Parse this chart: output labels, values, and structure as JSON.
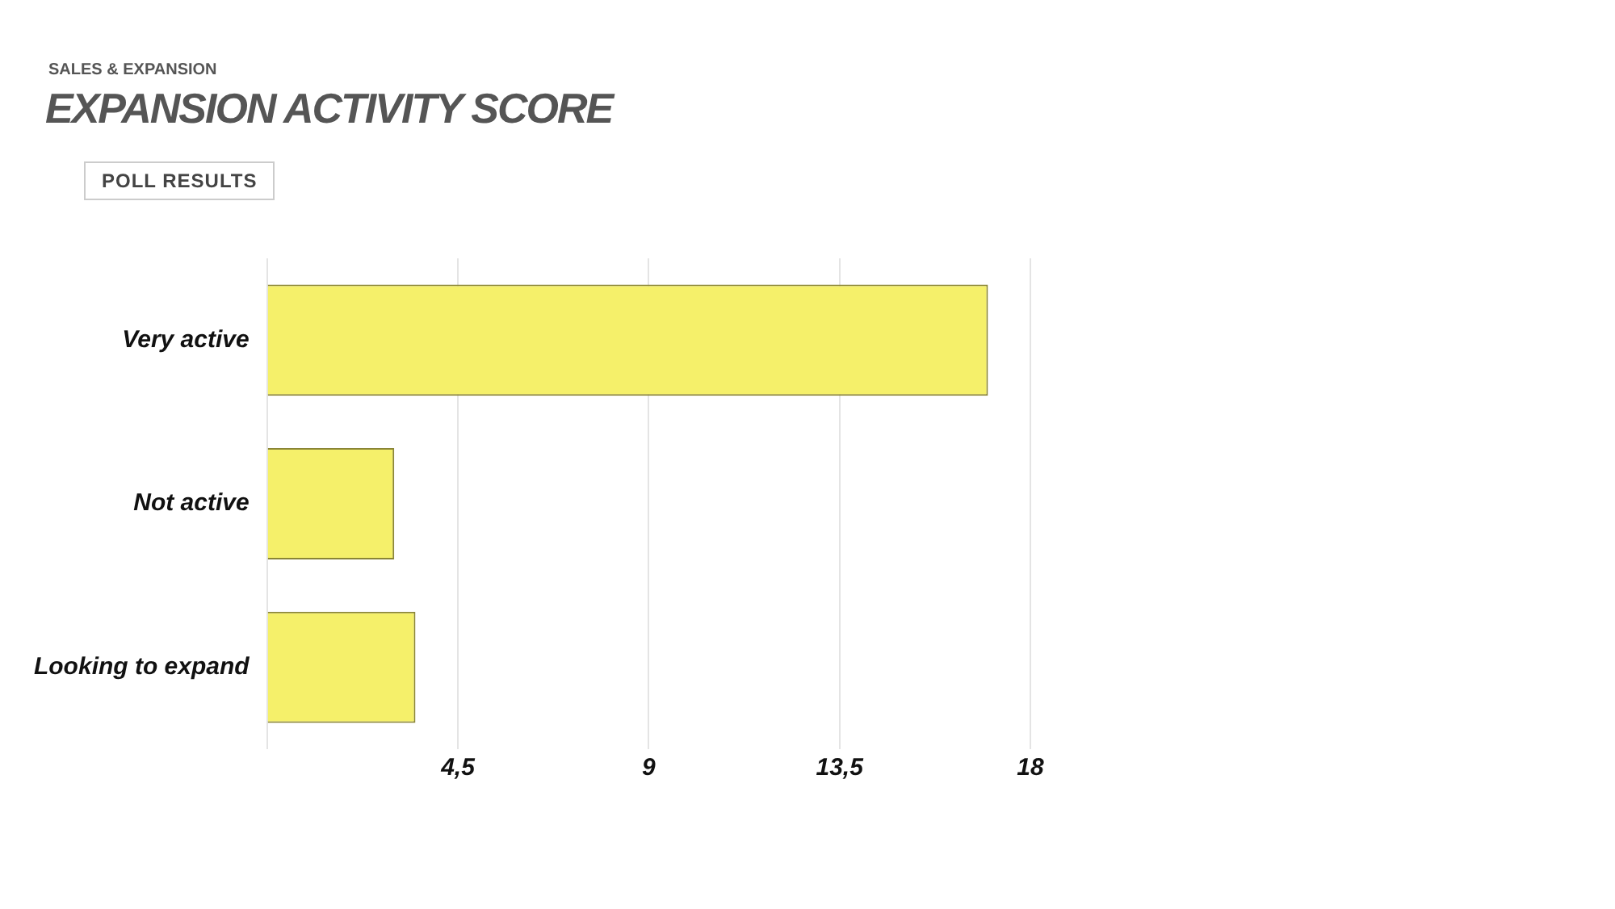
{
  "chart_data": {
    "type": "bar",
    "orientation": "horizontal",
    "subtitle": "SALES & EXPANSION",
    "title": "EXPANSION ACTIVITY SCORE",
    "annotations": [
      "POLL RESULTS"
    ],
    "categories": [
      "Very active",
      "Not active",
      "Looking to expand"
    ],
    "values": [
      17,
      3,
      3.5
    ],
    "color": "#f5f06a",
    "xlim": [
      0,
      18
    ],
    "xticks": [
      {
        "value": 0,
        "label": null
      },
      {
        "value": 4.5,
        "label": "4,5"
      },
      9,
      {
        "value": 13.5,
        "label": "13,5"
      },
      18
    ],
    "grid": "x",
    "legend": false
  }
}
